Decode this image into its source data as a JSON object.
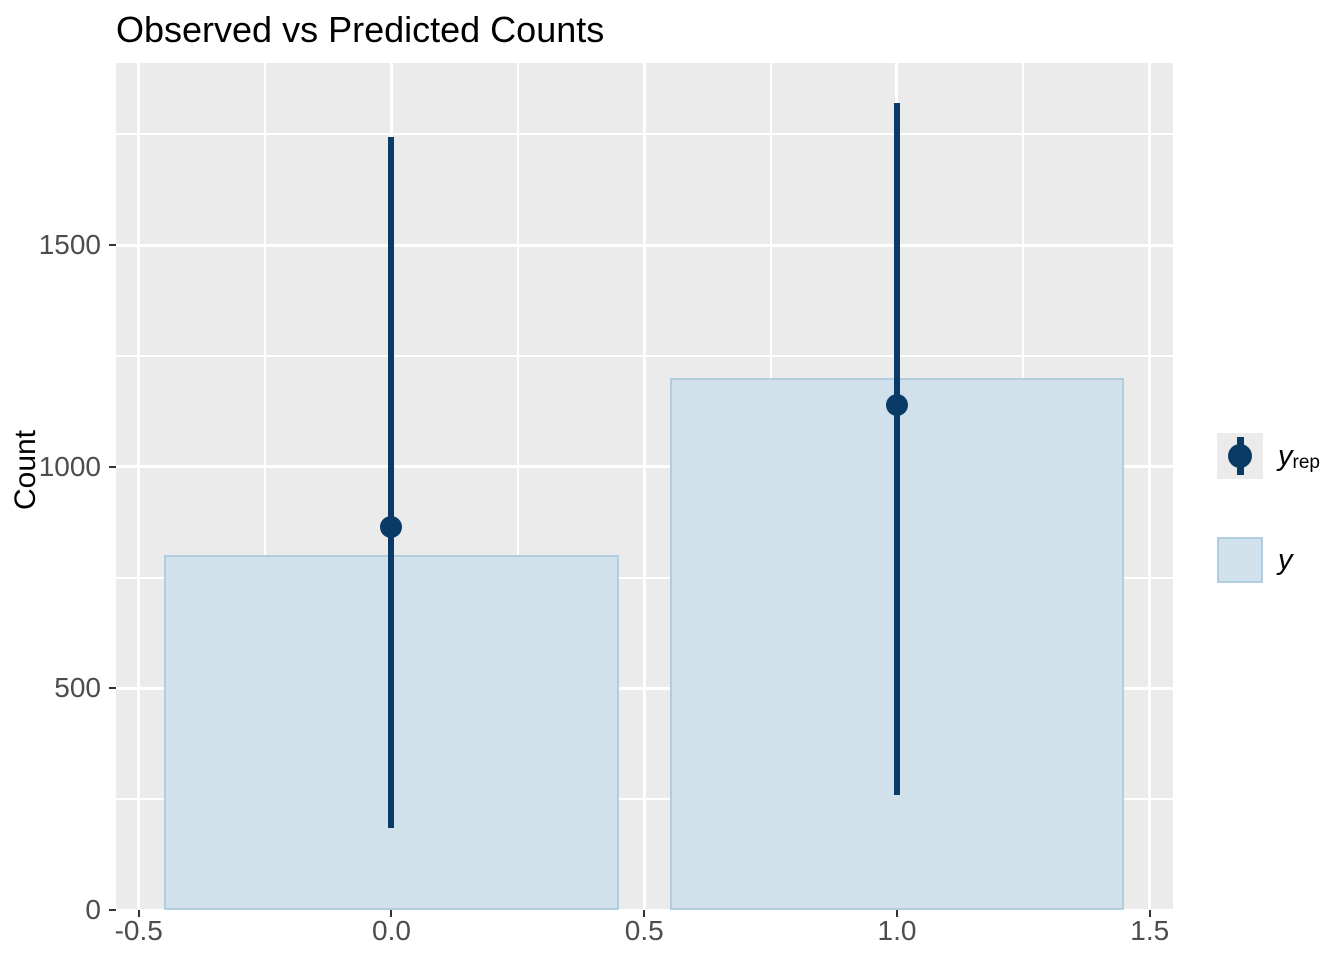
{
  "title": "Observed vs Predicted Counts",
  "colors": {
    "navy": "#0a3b66",
    "bar_fill": "#d1e1ec",
    "bar_stroke": "#b3cde0",
    "panel_bg": "#ebebeb",
    "grid": "#ffffff",
    "tick_text": "#4d4d4d",
    "tick_mark": "#333333",
    "text": "#000000",
    "page_bg": "#ffffff"
  },
  "chart_data": {
    "type": "bar",
    "title": "Observed vs Predicted Counts",
    "xlabel": "",
    "ylabel": "Count",
    "grid": true,
    "legend_position": "right",
    "xlim": [
      -0.545,
      1.546
    ],
    "ylim": [
      0,
      1911
    ],
    "x_tick_values": [
      -0.5,
      0.0,
      0.5,
      1.0,
      1.5
    ],
    "x_tick_labels": [
      "-0.5",
      "0.0",
      "0.5",
      "1.0",
      "1.5"
    ],
    "x_minor_values": [
      -0.25,
      0.25,
      0.75,
      1.25
    ],
    "y_tick_values": [
      0,
      500,
      1000,
      1500
    ],
    "y_tick_labels": [
      "0",
      "500",
      "1000",
      "1500"
    ],
    "y_minor_values": [
      250,
      750,
      1250,
      1750
    ],
    "series": [
      {
        "name": "y",
        "type": "bar",
        "label": "y",
        "x": [
          0,
          1
        ],
        "values": [
          800,
          1200
        ],
        "bar_width": 0.9
      },
      {
        "name": "y_rep",
        "type": "pointrange",
        "label": "y_rep",
        "x": [
          0,
          1
        ],
        "point": [
          865,
          1140
        ],
        "lower": [
          185,
          260
        ],
        "upper": [
          1745,
          1820
        ]
      }
    ],
    "legend": {
      "items": [
        {
          "id": "yrep",
          "label_main": "y",
          "label_sub": "rep"
        },
        {
          "id": "y",
          "label_main": "y",
          "label_sub": ""
        }
      ]
    }
  }
}
